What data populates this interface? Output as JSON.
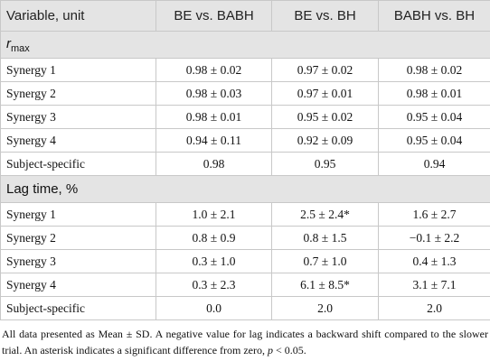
{
  "table": {
    "columns": [
      "Variable, unit",
      "BE vs. BABH",
      "BE vs. BH",
      "BABH vs. BH"
    ],
    "sections": [
      {
        "symbol": "r",
        "subscript": "max",
        "rows": [
          [
            "Synergy 1",
            "0.98 ± 0.02",
            "0.97 ± 0.02",
            "0.98 ± 0.02"
          ],
          [
            "Synergy 2",
            "0.98 ± 0.03",
            "0.97 ± 0.01",
            "0.98 ± 0.01"
          ],
          [
            "Synergy 3",
            "0.98 ± 0.01",
            "0.95 ± 0.02",
            "0.95 ± 0.04"
          ],
          [
            "Synergy 4",
            "0.94 ± 0.11",
            "0.92 ± 0.09",
            "0.95 ± 0.04"
          ],
          [
            "Subject-specific",
            "0.98",
            "0.95",
            "0.94"
          ]
        ]
      },
      {
        "title": "Lag time, %",
        "rows": [
          [
            "Synergy 1",
            "1.0 ± 2.1",
            "2.5 ± 2.4*",
            "1.6 ± 2.7"
          ],
          [
            "Synergy 2",
            "0.8 ± 0.9",
            "0.8 ± 1.5",
            "−0.1 ± 2.2"
          ],
          [
            "Synergy 3",
            "0.3 ± 1.0",
            "0.7 ± 1.0",
            "0.4 ± 1.3"
          ],
          [
            "Synergy 4",
            "0.3 ± 2.3",
            "6.1 ± 8.5*",
            "3.1 ± 7.1"
          ],
          [
            "Subject-specific",
            "0.0",
            "2.0",
            "2.0"
          ]
        ]
      }
    ]
  },
  "footnote": {
    "text": "All data presented as Mean ± SD. A negative value for lag indicates a backward shift compared to the slower trial. An asterisk indicates a significant difference from zero, ",
    "symbol": "p",
    "tail": " < 0.05."
  }
}
